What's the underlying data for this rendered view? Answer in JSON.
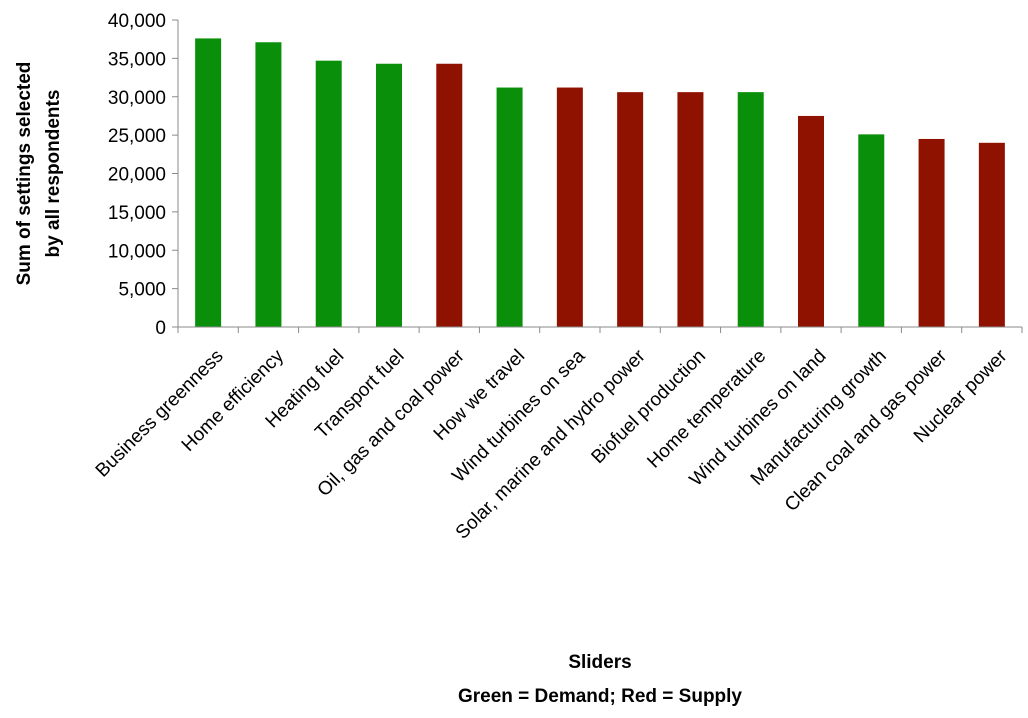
{
  "chart_data": {
    "type": "bar",
    "categories": [
      "Business greenness",
      "Home efficiency",
      "Heating fuel",
      "Transport fuel",
      "Oil, gas and coal power",
      "How we travel",
      "Wind turbines on sea",
      "Solar, marine and hydro power",
      "Biofuel production",
      "Home temperature",
      "Wind turbines on land",
      "Manufacturing growth",
      "Clean coal and gas power",
      "Nuclear power"
    ],
    "values": [
      37600,
      37100,
      34700,
      34300,
      34300,
      31200,
      31200,
      30600,
      30600,
      30600,
      27500,
      25100,
      24500,
      24000
    ],
    "groups": [
      "Demand",
      "Demand",
      "Demand",
      "Demand",
      "Supply",
      "Demand",
      "Supply",
      "Supply",
      "Supply",
      "Demand",
      "Supply",
      "Demand",
      "Supply",
      "Supply"
    ],
    "group_colors": {
      "Demand": "#0a8f0a",
      "Supply": "#8f1200"
    },
    "title": "",
    "xlabel": "Sliders",
    "xlabel_subtitle": "Green = Demand; Red = Supply",
    "ylabel": "Sum of settings selected by all respondents",
    "ylabel_lines": [
      "Sum of settings selected",
      "by all respondents"
    ],
    "ylim": [
      0,
      40000
    ],
    "yticks": [
      0,
      5000,
      10000,
      15000,
      20000,
      25000,
      30000,
      35000,
      40000
    ],
    "ytick_labels": [
      "0",
      "5,000",
      "10,000",
      "15,000",
      "20,000",
      "25,000",
      "30,000",
      "35,000",
      "40,000"
    ],
    "grid": false,
    "legend": "none"
  }
}
